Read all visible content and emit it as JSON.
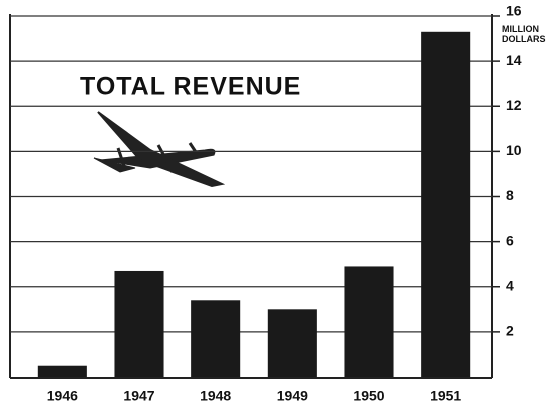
{
  "chart_data": {
    "type": "bar",
    "title": "TOTAL REVENUE",
    "y_label": "MILLION DOLLARS",
    "categories": [
      "1946",
      "1947",
      "1948",
      "1949",
      "1950",
      "1951"
    ],
    "values": [
      0.5,
      4.7,
      3.4,
      3.0,
      4.9,
      15.3
    ],
    "color": "#1a1a1a",
    "ylim": [
      0,
      16
    ],
    "yticks": [
      2,
      4,
      6,
      8,
      10,
      12,
      14,
      16
    ],
    "grid": true,
    "y_axis_side": "right"
  }
}
